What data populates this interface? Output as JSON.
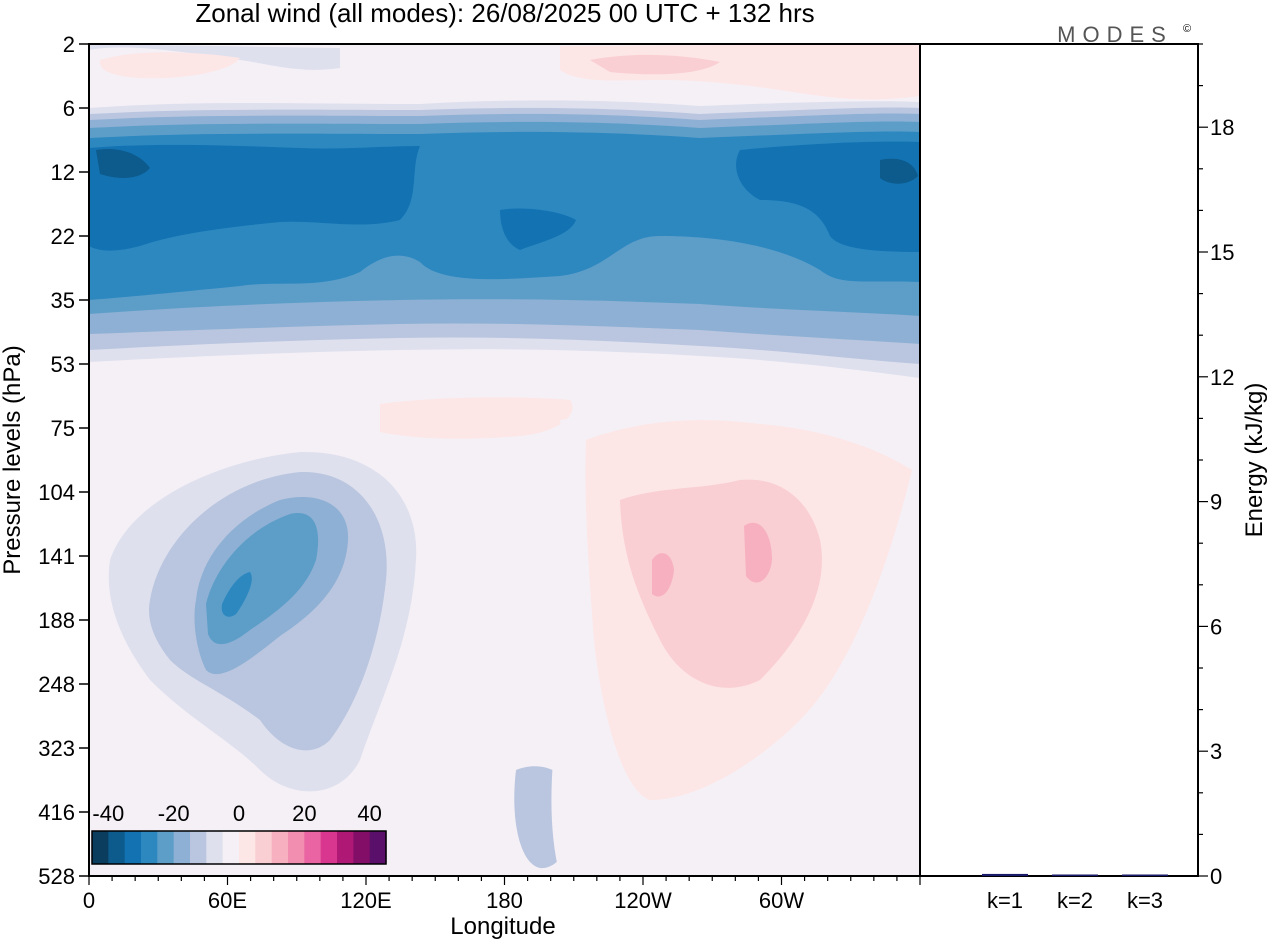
{
  "brand": "MODES",
  "brand_mark": "©",
  "chart_data": [
    {
      "type": "heatmap",
      "title": "Zonal wind (all modes):  26/08/2025  00 UTC  + 132 hrs",
      "xlabel": "Longitude",
      "ylabel": "Pressure levels (hPa)",
      "x_ticks": [
        "0",
        "60E",
        "120E",
        "180",
        "120W",
        "60W"
      ],
      "x_tick_deg": [
        0,
        60,
        120,
        180,
        240,
        300
      ],
      "x_range_deg": [
        0,
        360
      ],
      "y_ticks": [
        "2",
        "6",
        "12",
        "22",
        "35",
        "53",
        "75",
        "104",
        "141",
        "188",
        "248",
        "323",
        "416",
        "528"
      ],
      "colorbar": {
        "tick_labels": [
          "-40",
          "-20",
          "0",
          "20",
          "40"
        ],
        "tick_values": [
          -40,
          -20,
          0,
          20,
          40
        ],
        "range": [
          -45,
          45
        ],
        "step": 5,
        "colors": [
          "#0b3d5e",
          "#0d5a8c",
          "#1373b2",
          "#2d88c0",
          "#5d9ec9",
          "#8eb0d4",
          "#bac6df",
          "#dfe0ee",
          "#f5f0f6",
          "#fde6e6",
          "#f9cfd3",
          "#f7b0c0",
          "#f28fb0",
          "#ea63a2",
          "#d9368f",
          "#b01876",
          "#820e67",
          "#5a0f6b"
        ]
      },
      "features": [
        {
          "name": "stratospheric easterly jet core",
          "levels_hPa": [
            10,
            30
          ],
          "value_ms": -35
        },
        {
          "name": "upper easterly band",
          "levels_hPa": [
            6,
            45
          ],
          "value_ms": -25
        },
        {
          "name": "stratopause westerlies",
          "levels_hPa": [
            2,
            5
          ],
          "value_ms": 5
        },
        {
          "name": "tropospheric easterly core",
          "lon": "60E-90E",
          "levels_hPa": [
            120,
            220
          ],
          "value_ms": -25
        },
        {
          "name": "tropospheric westerlies",
          "lon": "140W-50W",
          "levels_hPa": [
            100,
            250
          ],
          "value_ms": 10
        }
      ]
    },
    {
      "type": "bar",
      "ylabel": "Energy (kJ/kg)",
      "categories": [
        "k=1",
        "k=2",
        "k=3"
      ],
      "values": [
        0.05,
        0.03,
        0.01
      ],
      "ylim": [
        0,
        20
      ],
      "y_ticks": [
        "0",
        "3",
        "6",
        "9",
        "12",
        "15",
        "18"
      ],
      "y_tick_values": [
        0,
        3,
        6,
        9,
        12,
        15,
        18
      ]
    }
  ]
}
